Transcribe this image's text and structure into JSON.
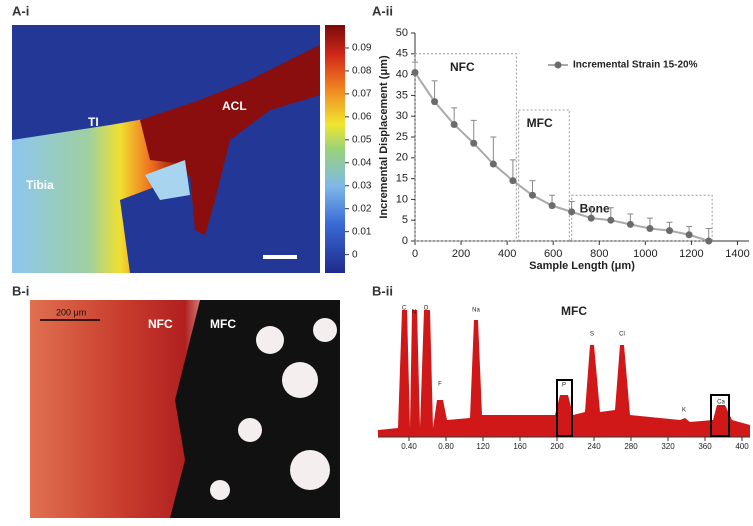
{
  "panel_labels": [
    "A-i",
    "A-ii",
    "B-i",
    "B-ii"
  ],
  "strain_map": {
    "labels": [
      "TI",
      "ACL",
      "Tibia"
    ],
    "colorbar": {
      "lim": [
        -0.008,
        0.1
      ],
      "ticks": [
        0.09,
        0.08,
        0.07,
        0.06,
        0.05,
        0.04,
        0.03,
        0.02,
        0.01,
        0
      ]
    }
  },
  "chart_data": {
    "type": "line",
    "y_label": "Incremental Displacement (μm)",
    "x_label": "Sample Length (μm)",
    "x": [
      0,
      85,
      170,
      255,
      340,
      425,
      510,
      595,
      680,
      765,
      850,
      935,
      1020,
      1105,
      1190,
      1275
    ],
    "series": [
      {
        "name": "Incremental Strain 15-20%",
        "color": "#6b6b6b",
        "values": [
          40.5,
          33.5,
          28,
          23.5,
          18.5,
          14.5,
          11,
          8.5,
          7,
          5.5,
          5,
          4,
          3,
          2.5,
          1.5,
          0
        ],
        "errors": [
          2.5,
          5,
          4,
          5.5,
          6.5,
          5,
          3.5,
          2.5,
          2.5,
          2.5,
          3,
          2.5,
          2.5,
          2,
          2,
          3
        ]
      }
    ],
    "regions": [
      {
        "label": "NFC",
        "x0": 0,
        "x1": 440,
        "y1": 45
      },
      {
        "label": "MFC",
        "x0": 450,
        "x1": 670,
        "y1": 31.5
      },
      {
        "label": "Bone",
        "x0": 680,
        "x1": 1290,
        "y1": 11
      }
    ],
    "xlim": [
      0,
      1450
    ],
    "ylim": [
      0,
      50
    ],
    "xticks": [
      0,
      200,
      400,
      600,
      800,
      1000,
      1200,
      1400
    ],
    "yticks": [
      0,
      5,
      10,
      15,
      20,
      25,
      30,
      35,
      40,
      45,
      50
    ],
    "legend": "top-right"
  },
  "histology": {
    "scale_bar": "200 μm",
    "labels": [
      "NFC",
      "MFC"
    ]
  },
  "spectrum": {
    "title": "MFC",
    "peaks": [
      "C",
      "N",
      "O",
      "F",
      "Na",
      "P",
      "S",
      "Cl",
      "K",
      "Ca"
    ],
    "x_tick_labels": [
      "0.40",
      "0.80",
      "120",
      "160",
      "200",
      "240",
      "280",
      "320",
      "360",
      "400"
    ]
  }
}
